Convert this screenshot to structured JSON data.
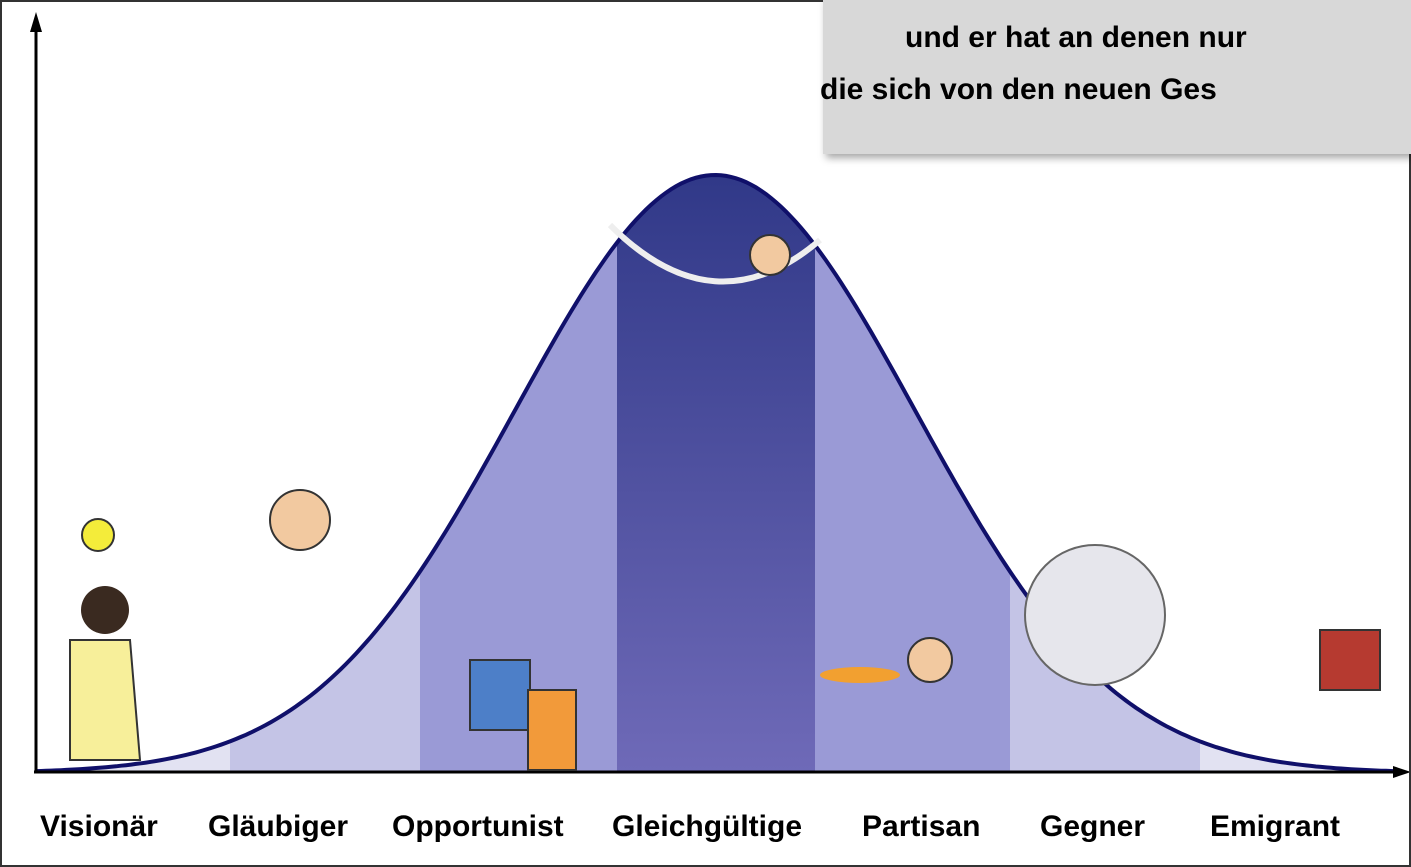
{
  "overlay": {
    "lines": [
      "und er hat an denen nur",
      "die sich von den neuen Ges"
    ]
  },
  "labels": [
    "Visionär",
    "Gläubiger",
    "Opportunist",
    "Gleichgültige",
    "Partisan",
    "Gegner",
    "Emigrant"
  ]
}
